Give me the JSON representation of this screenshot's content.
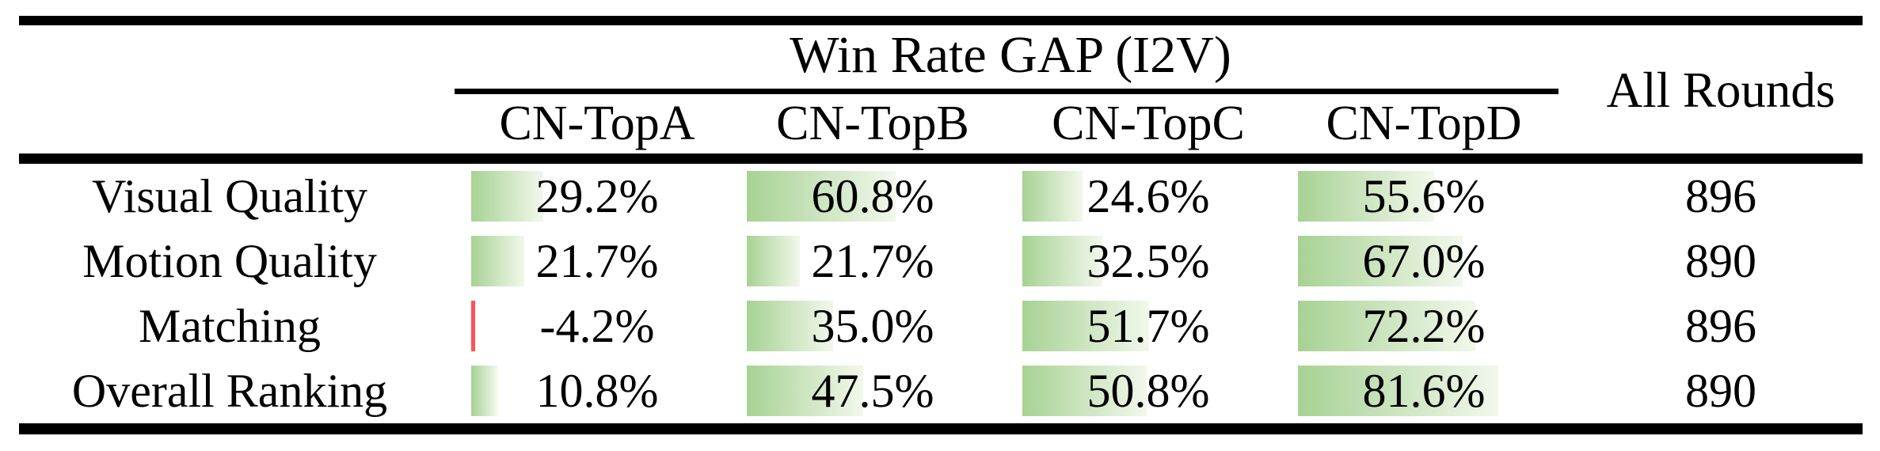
{
  "table": {
    "header": {
      "group_title": "Win Rate GAP (I2V)",
      "columns": [
        "CN-TopA",
        "CN-TopB",
        "CN-TopC",
        "CN-TopD"
      ],
      "all_rounds_label": "All Rounds"
    },
    "rows": [
      {
        "label": "Visual Quality",
        "cells": [
          {
            "text": "29.2%",
            "pct": 29.2
          },
          {
            "text": "60.8%",
            "pct": 60.8
          },
          {
            "text": "24.6%",
            "pct": 24.6
          },
          {
            "text": "55.6%",
            "pct": 55.6
          }
        ],
        "all_rounds": "896"
      },
      {
        "label": "Motion Quality",
        "cells": [
          {
            "text": "21.7%",
            "pct": 21.7
          },
          {
            "text": "21.7%",
            "pct": 21.7
          },
          {
            "text": "32.5%",
            "pct": 32.5
          },
          {
            "text": "67.0%",
            "pct": 67.0
          }
        ],
        "all_rounds": "890"
      },
      {
        "label": "Matching",
        "cells": [
          {
            "text": "-4.2%",
            "pct": -4.2
          },
          {
            "text": "35.0%",
            "pct": 35.0
          },
          {
            "text": "51.7%",
            "pct": 51.7
          },
          {
            "text": "72.2%",
            "pct": 72.2
          }
        ],
        "all_rounds": "896"
      },
      {
        "label": "Overall Ranking",
        "cells": [
          {
            "text": "10.8%",
            "pct": 10.8
          },
          {
            "text": "47.5%",
            "pct": 47.5
          },
          {
            "text": "50.8%",
            "pct": 50.8
          },
          {
            "text": "81.6%",
            "pct": 81.6
          }
        ],
        "all_rounds": "890"
      }
    ],
    "colors": {
      "bar_green_start": "#a7d294",
      "bar_green_end": "#f2f8ec",
      "bar_negative": "#ff5252",
      "rule": "#000000"
    }
  }
}
